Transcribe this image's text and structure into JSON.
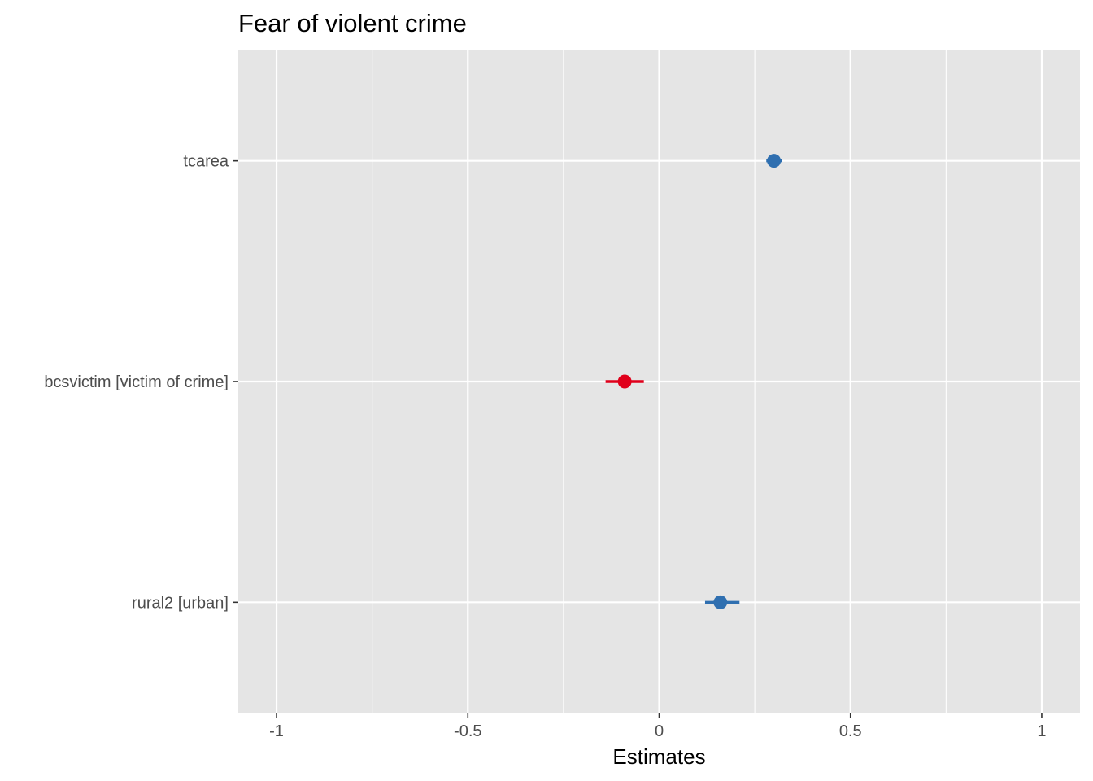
{
  "chart_data": {
    "type": "scatter",
    "title": "Fear of violent crime",
    "xlabel": "Estimates",
    "ylabel": "",
    "xlim": [
      -1.1,
      1.1
    ],
    "x_ticks": [
      -1,
      -0.5,
      0,
      0.5,
      1
    ],
    "x_tick_labels": [
      "-1",
      "-0.5",
      "0",
      "0.5",
      "1"
    ],
    "x_minor_ticks": [
      -0.75,
      -0.25,
      0.25,
      0.75
    ],
    "grid": true,
    "legend": "none",
    "categories": [
      "tcarea",
      "bcsvictim [victim of crime]",
      "rural2 [urban]"
    ],
    "points": [
      {
        "term": "tcarea",
        "estimate": 0.3,
        "conf_low": 0.28,
        "conf_high": 0.32,
        "color": "#2f6fb0"
      },
      {
        "term": "bcsvictim [victim of crime]",
        "estimate": -0.09,
        "conf_low": -0.14,
        "conf_high": -0.04,
        "color": "#e0001b"
      },
      {
        "term": "rural2 [urban]",
        "estimate": 0.16,
        "conf_low": 0.12,
        "conf_high": 0.21,
        "color": "#2f6fb0"
      }
    ],
    "colors": {
      "panel_background": "#e5e5e5",
      "grid_line": "#ffffff",
      "positive": "#2f6fb0",
      "negative": "#e0001b"
    }
  }
}
